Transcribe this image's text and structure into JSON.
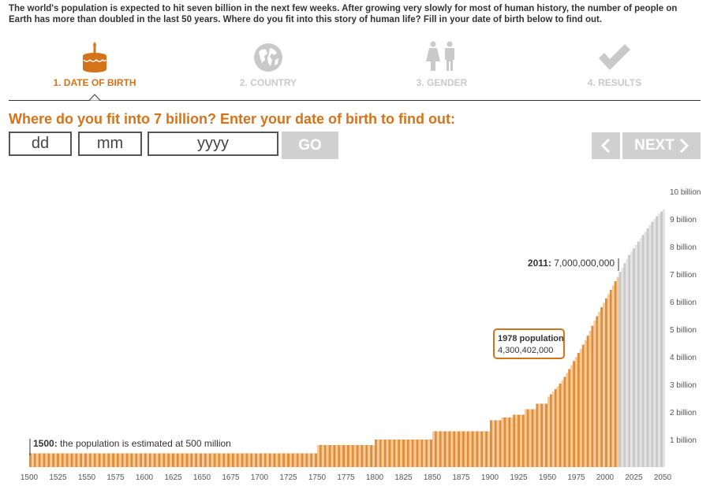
{
  "intro": "The world's population is expected to hit seven billion in the next few weeks. After growing very slowly for most of human history, the number of people on Earth has more than doubled in the last 50 years. Where do you fit into this story of human life? Fill in your date of birth below to find out.",
  "steps": [
    {
      "label": "1. DATE OF BIRTH",
      "icon": "birthday-cake-icon",
      "active": true
    },
    {
      "label": "2. COUNTRY",
      "icon": "globe-icon",
      "active": false
    },
    {
      "label": "3. GENDER",
      "icon": "gender-icon",
      "active": false
    },
    {
      "label": "4. RESULTS",
      "icon": "checkmark-icon",
      "active": false
    }
  ],
  "question": "Where do you fit into 7 billion? Enter your date of birth to find out:",
  "form": {
    "day_placeholder": "dd",
    "month_placeholder": "mm",
    "year_placeholder": "yyyy",
    "go_label": "GO"
  },
  "nav": {
    "prev_icon": "chevron-left-icon",
    "next_label": "NEXT"
  },
  "colors": {
    "accent": "#d5731a",
    "bar_orange": "#e08d36",
    "bar_orange_light": "#f5c99a",
    "projection_gray": "#c8c8c8",
    "button_gray": "#d0d0d0"
  },
  "chart_data": {
    "type": "bar",
    "x_label_ticks": [
      1500,
      1525,
      1550,
      1575,
      1600,
      1625,
      1650,
      1675,
      1700,
      1725,
      1750,
      1775,
      1800,
      1825,
      1850,
      1875,
      1900,
      1925,
      1950,
      1975,
      2000,
      2025,
      2050
    ],
    "y_tick_labels": [
      "1 billion",
      "2 billion",
      "3 billion",
      "4 billion",
      "5 billion",
      "6 billion",
      "7 billion",
      "8 billion",
      "9 billion",
      "10 billion"
    ],
    "ylim": [
      0,
      10000000000
    ],
    "xlim": [
      1500,
      2050
    ],
    "bar_step_years": 2,
    "series": [
      {
        "kind": "estimated",
        "x": [
          1500,
          1750,
          1800,
          1850,
          1900,
          1910,
          1920,
          1930,
          1940,
          1950,
          1955,
          1960,
          1965,
          1970,
          1975,
          1980,
          1985,
          1990,
          1995,
          2000,
          2005,
          2010,
          2011
        ],
        "y": [
          500000000,
          800000000,
          1000000000,
          1300000000,
          1700000000,
          1800000000,
          1900000000,
          2100000000,
          2300000000,
          2550000000,
          2780000000,
          3030000000,
          3340000000,
          3700000000,
          4070000000,
          4440000000,
          4850000000,
          5310000000,
          5720000000,
          6120000000,
          6510000000,
          6900000000,
          7000000000
        ]
      },
      {
        "kind": "projected",
        "x": [
          2011,
          2015,
          2020,
          2025,
          2030,
          2035,
          2040,
          2045,
          2050
        ],
        "y": [
          7000000000,
          7320000000,
          7700000000,
          8000000000,
          8300000000,
          8600000000,
          8900000000,
          9150000000,
          9350000000
        ]
      }
    ],
    "annotations": [
      {
        "x": 1500,
        "y": 500000000,
        "bold": "1500:",
        "text": "the population is estimated at 500 million"
      },
      {
        "x": 2011,
        "y": 7000000000,
        "bold": "2011:",
        "text": "7,000,000,000"
      },
      {
        "x": 1978,
        "y": 4300402000,
        "bold": "1978 population",
        "text": "4,300,402,000",
        "boxed": true
      }
    ]
  }
}
